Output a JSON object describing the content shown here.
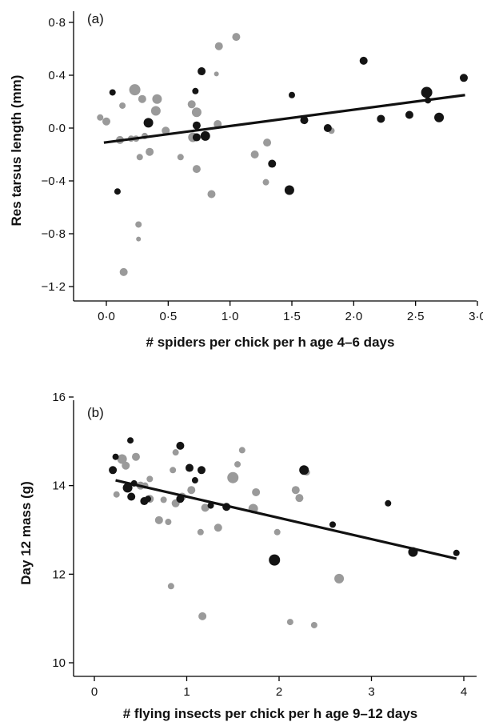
{
  "colors": {
    "black_points": "#141414",
    "grey_points": "#9a9a9a",
    "fit_line": "#111111"
  },
  "chart_data": [
    {
      "type": "scatter",
      "panel_label": "(a)",
      "xlabel": "# spiders per chick per h age 4–6 days",
      "ylabel": "Res tarsus length (mm)",
      "xlim": [
        -0.15,
        3.1
      ],
      "ylim": [
        -1.32,
        0.85
      ],
      "xticks": [
        0,
        0.5,
        1.0,
        1.5,
        2.0,
        2.5,
        3.0
      ],
      "xtick_labels": [
        "0·0",
        "0·5",
        "1·0",
        "1·5",
        "2·0",
        "2·5",
        "3·0"
      ],
      "yticks": [
        -1.2,
        -0.8,
        -0.4,
        0.0,
        0.4,
        0.8
      ],
      "ytick_labels": [
        "−1·2",
        "−0·8",
        "−0·4",
        "0·0",
        "0·4",
        "0·8"
      ],
      "fit_line": {
        "x": [
          -0.02,
          2.9
        ],
        "y": [
          -0.11,
          0.25
        ]
      },
      "series": [
        {
          "group": "black",
          "points": [
            {
              "x": 0.05,
              "y": 0.27,
              "s": 4
            },
            {
              "x": 0.09,
              "y": -0.48,
              "s": 4
            },
            {
              "x": 0.34,
              "y": 0.04,
              "s": 6
            },
            {
              "x": 0.72,
              "y": 0.28,
              "s": 4
            },
            {
              "x": 0.77,
              "y": 0.43,
              "s": 5
            },
            {
              "x": 0.73,
              "y": 0.02,
              "s": 5
            },
            {
              "x": 0.73,
              "y": -0.07,
              "s": 5
            },
            {
              "x": 0.8,
              "y": -0.06,
              "s": 6
            },
            {
              "x": 1.34,
              "y": -0.27,
              "s": 5
            },
            {
              "x": 1.48,
              "y": -0.47,
              "s": 6
            },
            {
              "x": 1.5,
              "y": 0.25,
              "s": 4
            },
            {
              "x": 1.6,
              "y": 0.06,
              "s": 5
            },
            {
              "x": 1.79,
              "y": 0.0,
              "s": 5
            },
            {
              "x": 2.08,
              "y": 0.51,
              "s": 5
            },
            {
              "x": 2.22,
              "y": 0.07,
              "s": 5
            },
            {
              "x": 2.45,
              "y": 0.1,
              "s": 5
            },
            {
              "x": 2.59,
              "y": 0.27,
              "s": 7
            },
            {
              "x": 2.6,
              "y": 0.21,
              "s": 4
            },
            {
              "x": 2.69,
              "y": 0.08,
              "s": 6
            },
            {
              "x": 2.89,
              "y": 0.38,
              "s": 5
            }
          ]
        },
        {
          "group": "grey",
          "points": [
            {
              "x": -0.05,
              "y": 0.08,
              "s": 4
            },
            {
              "x": 0.0,
              "y": 0.05,
              "s": 5
            },
            {
              "x": 0.11,
              "y": -0.09,
              "s": 5
            },
            {
              "x": 0.13,
              "y": 0.17,
              "s": 4
            },
            {
              "x": 0.14,
              "y": -1.09,
              "s": 5
            },
            {
              "x": 0.2,
              "y": -0.08,
              "s": 4
            },
            {
              "x": 0.23,
              "y": 0.29,
              "s": 7
            },
            {
              "x": 0.24,
              "y": -0.08,
              "s": 4
            },
            {
              "x": 0.26,
              "y": -0.73,
              "s": 4
            },
            {
              "x": 0.26,
              "y": -0.84,
              "s": 3
            },
            {
              "x": 0.27,
              "y": -0.22,
              "s": 4
            },
            {
              "x": 0.29,
              "y": 0.22,
              "s": 5
            },
            {
              "x": 0.31,
              "y": -0.06,
              "s": 4
            },
            {
              "x": 0.35,
              "y": -0.18,
              "s": 5
            },
            {
              "x": 0.4,
              "y": 0.13,
              "s": 6
            },
            {
              "x": 0.41,
              "y": 0.22,
              "s": 6
            },
            {
              "x": 0.48,
              "y": -0.02,
              "s": 5
            },
            {
              "x": 0.6,
              "y": -0.22,
              "s": 4
            },
            {
              "x": 0.69,
              "y": 0.18,
              "s": 5
            },
            {
              "x": 0.7,
              "y": -0.07,
              "s": 6
            },
            {
              "x": 0.73,
              "y": 0.12,
              "s": 6
            },
            {
              "x": 0.73,
              "y": -0.31,
              "s": 5
            },
            {
              "x": 0.85,
              "y": -0.5,
              "s": 5
            },
            {
              "x": 0.89,
              "y": 0.41,
              "s": 3
            },
            {
              "x": 0.9,
              "y": 0.03,
              "s": 5
            },
            {
              "x": 0.91,
              "y": 0.62,
              "s": 5
            },
            {
              "x": 1.05,
              "y": 0.69,
              "s": 5
            },
            {
              "x": 1.2,
              "y": -0.2,
              "s": 5
            },
            {
              "x": 1.29,
              "y": -0.41,
              "s": 4
            },
            {
              "x": 1.3,
              "y": -0.11,
              "s": 5
            },
            {
              "x": 1.82,
              "y": -0.02,
              "s": 4
            }
          ]
        }
      ]
    },
    {
      "type": "scatter",
      "panel_label": "(b)",
      "xlabel": "# flying insects per chick per h age 9–12 days",
      "ylabel": "Day 12 mass (g)",
      "xlim": [
        -0.05,
        4.1
      ],
      "ylim": [
        9.7,
        16.3
      ],
      "xticks": [
        0,
        1,
        2,
        3,
        4
      ],
      "xtick_labels": [
        "0",
        "1",
        "2",
        "3",
        "4"
      ],
      "yticks": [
        10,
        12,
        14,
        16
      ],
      "ytick_labels": [
        "10",
        "12",
        "14",
        "16"
      ],
      "fit_line": {
        "x": [
          0.23,
          3.92
        ],
        "y": [
          14.12,
          12.35
        ]
      },
      "series": [
        {
          "group": "black",
          "points": [
            {
              "x": 0.2,
              "y": 14.35,
              "s": 5
            },
            {
              "x": 0.23,
              "y": 14.65,
              "s": 4
            },
            {
              "x": 0.36,
              "y": 13.95,
              "s": 6
            },
            {
              "x": 0.39,
              "y": 15.02,
              "s": 4
            },
            {
              "x": 0.4,
              "y": 13.75,
              "s": 5
            },
            {
              "x": 0.43,
              "y": 14.05,
              "s": 4
            },
            {
              "x": 0.54,
              "y": 13.65,
              "s": 5
            },
            {
              "x": 0.58,
              "y": 13.7,
              "s": 4
            },
            {
              "x": 0.93,
              "y": 14.9,
              "s": 5
            },
            {
              "x": 0.93,
              "y": 13.7,
              "s": 5
            },
            {
              "x": 1.03,
              "y": 14.4,
              "s": 5
            },
            {
              "x": 1.09,
              "y": 14.12,
              "s": 4
            },
            {
              "x": 1.16,
              "y": 14.35,
              "s": 5
            },
            {
              "x": 1.26,
              "y": 13.55,
              "s": 4
            },
            {
              "x": 1.43,
              "y": 13.52,
              "s": 5
            },
            {
              "x": 1.95,
              "y": 12.32,
              "s": 7
            },
            {
              "x": 2.27,
              "y": 14.35,
              "s": 6
            },
            {
              "x": 2.58,
              "y": 13.12,
              "s": 4
            },
            {
              "x": 3.18,
              "y": 13.6,
              "s": 4
            },
            {
              "x": 3.45,
              "y": 12.5,
              "s": 6
            },
            {
              "x": 3.92,
              "y": 12.48,
              "s": 4
            }
          ]
        },
        {
          "group": "grey",
          "points": [
            {
              "x": 0.24,
              "y": 13.8,
              "s": 4
            },
            {
              "x": 0.3,
              "y": 14.6,
              "s": 6
            },
            {
              "x": 0.34,
              "y": 14.45,
              "s": 5
            },
            {
              "x": 0.45,
              "y": 14.65,
              "s": 5
            },
            {
              "x": 0.5,
              "y": 14.0,
              "s": 5
            },
            {
              "x": 0.55,
              "y": 14.0,
              "s": 4
            },
            {
              "x": 0.6,
              "y": 14.15,
              "s": 4
            },
            {
              "x": 0.6,
              "y": 13.7,
              "s": 5
            },
            {
              "x": 0.7,
              "y": 13.22,
              "s": 5
            },
            {
              "x": 0.75,
              "y": 13.68,
              "s": 4
            },
            {
              "x": 0.8,
              "y": 13.18,
              "s": 4
            },
            {
              "x": 0.83,
              "y": 11.73,
              "s": 4
            },
            {
              "x": 0.85,
              "y": 14.35,
              "s": 4
            },
            {
              "x": 0.88,
              "y": 13.6,
              "s": 5
            },
            {
              "x": 0.88,
              "y": 14.75,
              "s": 4
            },
            {
              "x": 0.95,
              "y": 13.75,
              "s": 5
            },
            {
              "x": 1.05,
              "y": 13.9,
              "s": 5
            },
            {
              "x": 1.15,
              "y": 12.95,
              "s": 4
            },
            {
              "x": 1.17,
              "y": 11.05,
              "s": 5
            },
            {
              "x": 1.2,
              "y": 13.5,
              "s": 5
            },
            {
              "x": 1.34,
              "y": 13.05,
              "s": 5
            },
            {
              "x": 1.5,
              "y": 14.18,
              "s": 7
            },
            {
              "x": 1.55,
              "y": 14.48,
              "s": 4
            },
            {
              "x": 1.6,
              "y": 14.8,
              "s": 4
            },
            {
              "x": 1.72,
              "y": 13.48,
              "s": 6
            },
            {
              "x": 1.75,
              "y": 13.85,
              "s": 5
            },
            {
              "x": 1.98,
              "y": 12.95,
              "s": 4
            },
            {
              "x": 2.12,
              "y": 10.92,
              "s": 4
            },
            {
              "x": 2.18,
              "y": 13.9,
              "s": 5
            },
            {
              "x": 2.22,
              "y": 13.72,
              "s": 5
            },
            {
              "x": 2.3,
              "y": 14.3,
              "s": 4
            },
            {
              "x": 2.38,
              "y": 10.85,
              "s": 4
            },
            {
              "x": 2.65,
              "y": 11.9,
              "s": 6
            }
          ]
        }
      ]
    }
  ]
}
